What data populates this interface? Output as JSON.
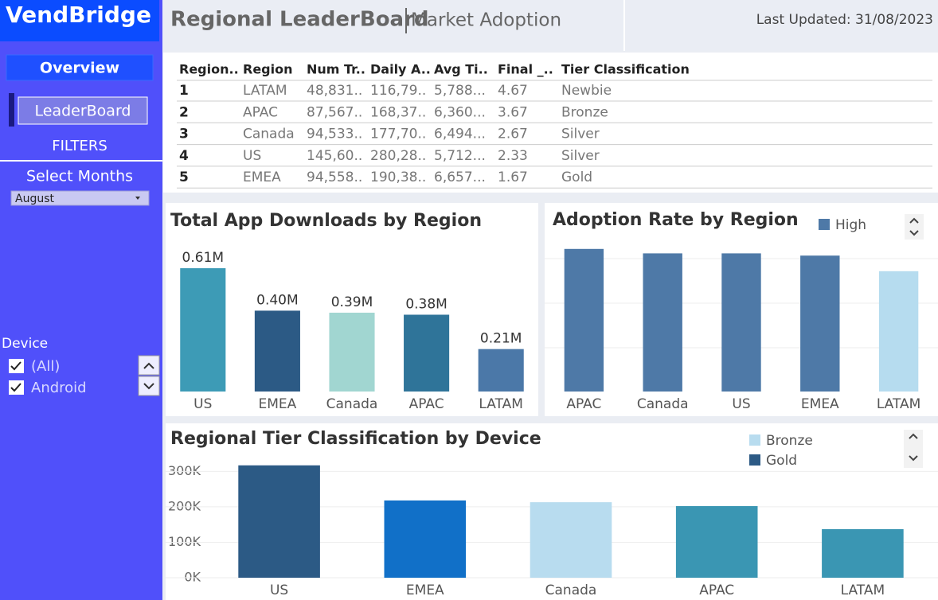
{
  "sidebar": {
    "logo": "VendBridge",
    "nav": [
      "Overview",
      "LeaderBoard"
    ],
    "filters_title": "FILTERS",
    "month_filter": {
      "label": "Select Months",
      "value": "August"
    },
    "device_filter": {
      "label": "Device",
      "options": [
        "(All)",
        "Android"
      ]
    }
  },
  "header": {
    "title": "Regional LeaderBoard",
    "subtitle": "Market Adoption",
    "last_updated": "Last Updated: 31/08/2023"
  },
  "table": {
    "columns": [
      "Region..",
      "Region",
      "Num Tr..",
      "Daily A..",
      "Avg Ti..",
      "Final _..",
      "Tier Classification"
    ],
    "rows": [
      [
        1,
        "LATAM",
        "48,831..",
        "116,79..",
        "5,788...",
        4.67,
        "Newbie"
      ],
      [
        2,
        "APAC",
        "87,567..",
        "168,37..",
        "6,360...",
        3.67,
        "Bronze"
      ],
      [
        3,
        "Canada",
        "94,533..",
        "177,70..",
        "6,494...",
        2.67,
        "Silver"
      ],
      [
        4,
        "US",
        "145,60..",
        "280,28..",
        "5,712...",
        2.33,
        "Silver"
      ],
      [
        5,
        "EMEA",
        "94,558..",
        "190,38..",
        "6,657...",
        1.67,
        "Gold"
      ]
    ]
  },
  "chart_data": [
    {
      "type": "bar",
      "title": "Total App Downloads by Region",
      "categories": [
        "US",
        "EMEA",
        "Canada",
        "APAC",
        "LATAM"
      ],
      "values": [
        0.61,
        0.4,
        0.39,
        0.38,
        0.21
      ],
      "value_labels": [
        "0.61M",
        "0.40M",
        "0.39M",
        "0.38M",
        "0.21M"
      ],
      "colors": [
        "#3d9bb6",
        "#2c5a85",
        "#a1d6d1",
        "#2f7499",
        "#4b78a8"
      ]
    },
    {
      "type": "bar",
      "title": "Adoption Rate by Region",
      "categories": [
        "APAC",
        "Canada",
        "US",
        "EMEA",
        "LATAM"
      ],
      "values": [
        3.2,
        3.1,
        3.1,
        3.05,
        2.7
      ],
      "colors": [
        "#4e79a7",
        "#4e79a7",
        "#4e79a7",
        "#4e79a7",
        "#b6dcef"
      ],
      "legend": [
        {
          "name": "High",
          "color": "#4e79a7"
        }
      ],
      "grid": true
    },
    {
      "type": "bar",
      "title": "Regional Tier Classification by Device",
      "categories": [
        "US",
        "EMEA",
        "Canada",
        "APAC",
        "LATAM"
      ],
      "values": [
        317000,
        218000,
        213000,
        202000,
        137000
      ],
      "colors": [
        "#2c5a85",
        "#1170c8",
        "#b8dcef",
        "#3a96b3",
        "#3a96b3"
      ],
      "legend": [
        {
          "name": "Bronze",
          "color": "#b8dcef"
        },
        {
          "name": "Gold",
          "color": "#2c5a85"
        }
      ],
      "ylim": [
        0,
        330000
      ],
      "yticks": [
        {
          "value": 0,
          "label": "0K"
        },
        {
          "value": 100000,
          "label": "100K"
        },
        {
          "value": 200000,
          "label": "200K"
        },
        {
          "value": 300000,
          "label": "300K"
        }
      ],
      "grid": true
    }
  ]
}
